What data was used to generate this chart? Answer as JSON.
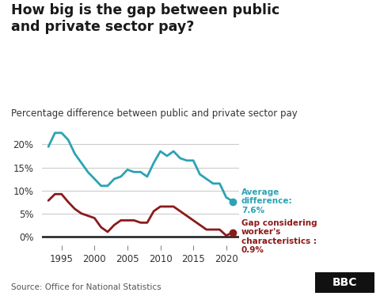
{
  "title": "How big is the gap between public\nand private sector pay?",
  "subtitle": "Percentage difference between public and private sector pay",
  "source": "Source: Office for National Statistics",
  "blue_years": [
    1993,
    1994,
    1995,
    1996,
    1997,
    1998,
    1999,
    2000,
    2001,
    2002,
    2003,
    2004,
    2005,
    2006,
    2007,
    2008,
    2009,
    2010,
    2011,
    2012,
    2013,
    2014,
    2015,
    2016,
    2017,
    2018,
    2019,
    2020,
    2021
  ],
  "blue_values": [
    19.5,
    22.5,
    22.5,
    21.0,
    18.0,
    16.0,
    14.0,
    12.5,
    11.0,
    11.0,
    12.5,
    13.0,
    14.5,
    14.0,
    14.0,
    13.0,
    16.0,
    18.5,
    17.5,
    18.5,
    17.0,
    16.5,
    16.5,
    13.5,
    12.5,
    11.5,
    11.5,
    8.5,
    7.6
  ],
  "red_years": [
    1993,
    1994,
    1995,
    1996,
    1997,
    1998,
    1999,
    2000,
    2001,
    2002,
    2003,
    2004,
    2005,
    2006,
    2007,
    2008,
    2009,
    2010,
    2011,
    2012,
    2013,
    2014,
    2015,
    2016,
    2017,
    2018,
    2019,
    2020,
    2021
  ],
  "red_values": [
    7.8,
    9.2,
    9.2,
    7.5,
    6.0,
    5.0,
    4.5,
    4.0,
    2.0,
    1.0,
    2.5,
    3.5,
    3.5,
    3.5,
    3.0,
    3.0,
    5.5,
    6.5,
    6.5,
    6.5,
    5.5,
    4.5,
    3.5,
    2.5,
    1.5,
    1.5,
    1.5,
    0.2,
    0.9
  ],
  "blue_color": "#2ba3b4",
  "red_color": "#8b1a1a",
  "blue_label": "Average\ndifference:\n7.6%",
  "red_label": "Gap considering\nworker's\ncharacteristics :\n0.9%",
  "ylim": [
    -2,
    25
  ],
  "yticks": [
    0,
    5,
    10,
    15,
    20
  ],
  "xticks": [
    1995,
    2000,
    2005,
    2010,
    2015,
    2020
  ],
  "bg_color": "#ffffff",
  "grid_color": "#cccccc",
  "zero_line_color": "#1a1a1a",
  "title_color": "#1a1a1a",
  "subtitle_color": "#333333",
  "source_color": "#555555"
}
